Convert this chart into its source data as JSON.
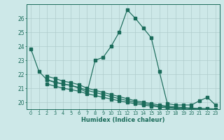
{
  "xlabel": "Humidex (Indice chaleur)",
  "bg_color": "#cde8e8",
  "grid_color": "#b0cccc",
  "line_color": "#1a6b5a",
  "xlim": [
    -0.5,
    23.5
  ],
  "ylim": [
    19.5,
    27.0
  ],
  "yticks": [
    20,
    21,
    22,
    23,
    24,
    25,
    26
  ],
  "xticks": [
    0,
    1,
    2,
    3,
    4,
    5,
    6,
    7,
    8,
    9,
    10,
    11,
    12,
    13,
    14,
    15,
    16,
    17,
    18,
    19,
    20,
    21,
    22,
    23
  ],
  "series1_x": [
    0,
    1,
    2,
    3,
    4,
    5,
    6,
    7,
    8,
    9,
    10,
    11,
    12,
    13,
    14,
    15,
    16,
    17,
    18,
    19,
    20,
    21,
    22,
    23
  ],
  "series1_y": [
    23.8,
    22.2,
    21.6,
    21.4,
    21.3,
    21.2,
    21.0,
    20.7,
    23.0,
    23.2,
    24.0,
    25.0,
    26.6,
    26.0,
    25.3,
    24.6,
    22.2,
    19.9,
    19.8,
    19.8,
    19.8,
    20.1,
    20.35,
    19.8
  ],
  "series2_x": [
    2,
    3,
    4,
    5,
    6,
    7,
    8,
    9,
    10,
    11,
    12,
    13,
    14,
    15,
    16,
    17,
    18,
    19,
    20,
    21,
    22,
    23
  ],
  "series2_y": [
    21.85,
    21.7,
    21.5,
    21.4,
    21.25,
    21.0,
    20.85,
    20.7,
    20.55,
    20.4,
    20.25,
    20.1,
    20.0,
    19.9,
    19.8,
    19.72,
    19.66,
    19.62,
    19.58,
    19.56,
    19.54,
    19.52
  ],
  "series3_x": [
    2,
    3,
    4,
    5,
    6,
    7,
    8,
    9,
    10,
    11,
    12,
    13,
    14,
    15,
    16,
    17,
    18,
    19,
    20,
    21,
    22,
    23
  ],
  "series3_y": [
    21.6,
    21.45,
    21.3,
    21.2,
    21.05,
    20.85,
    20.7,
    20.55,
    20.4,
    20.25,
    20.12,
    20.0,
    19.9,
    19.8,
    19.72,
    19.65,
    19.6,
    19.56,
    19.52,
    19.5,
    19.48,
    19.46
  ],
  "series4_x": [
    2,
    3,
    4,
    5,
    6,
    7,
    8,
    9,
    10,
    11,
    12,
    13,
    14,
    15,
    16,
    17,
    18,
    19,
    20,
    21,
    22,
    23
  ],
  "series4_y": [
    21.3,
    21.15,
    21.0,
    20.9,
    20.78,
    20.6,
    20.48,
    20.35,
    20.22,
    20.1,
    19.99,
    19.89,
    19.8,
    19.72,
    19.65,
    19.58,
    19.53,
    19.49,
    19.45,
    19.43,
    19.41,
    19.4
  ]
}
